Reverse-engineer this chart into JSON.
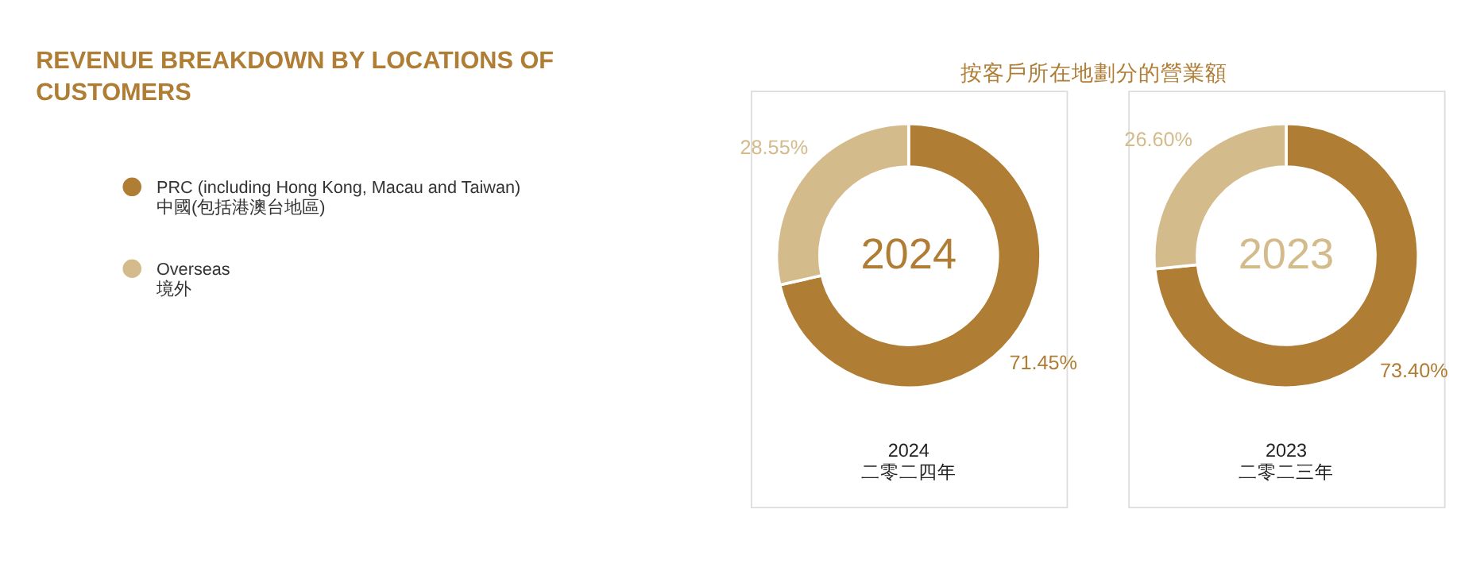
{
  "chart_data": {
    "type": "donut",
    "title": "REVENUE BREAKDOWN BY LOCATIONS OF CUSTOMERS",
    "subtitle": "按客戶所在地劃分的營業額",
    "categories": [
      "PRC (including Hong Kong, Macau and Taiwan)\n中國(包括港澳台地區)",
      "Overseas\n境外"
    ],
    "colors": [
      "#b07d35",
      "#d4bb8c"
    ],
    "legend": "left",
    "series": [
      {
        "name": "2024",
        "values": [
          71.45,
          28.55
        ],
        "value_labels": [
          "71.45%",
          "28.55%"
        ]
      },
      {
        "name": "2023",
        "values": [
          73.4,
          26.6
        ],
        "value_labels": [
          "73.40%",
          "26.60%"
        ]
      }
    ],
    "annotations": [
      "2024\n二零二四年",
      "2023\n二零二三年"
    ]
  }
}
